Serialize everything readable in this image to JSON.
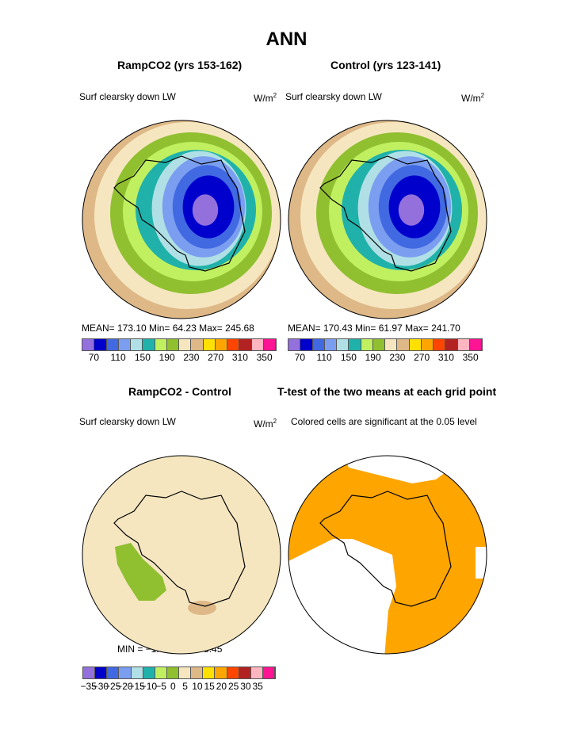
{
  "title": "ANN",
  "panels": [
    {
      "subtitle": "RampCO2 (yrs 153-162)",
      "left_label": "Surf clearsky down LW",
      "units": "W/m",
      "units_sup": "2",
      "stats": "MEAN=  173.10   Min=    64.23   Max=  245.68"
    },
    {
      "subtitle": "Control (yrs 123-141)",
      "left_label": "Surf clearsky down LW",
      "units": "W/m",
      "units_sup": "2",
      "stats": "MEAN=  170.43   Min=    61.97   Max=  241.70"
    },
    {
      "subtitle": "RampCO2 - Control",
      "left_label": "Surf clearsky down LW",
      "units": "W/m",
      "units_sup": "2",
      "stats": "MIN =   −1.61  MAX =     5.45"
    },
    {
      "subtitle": "T-test of the two means at each grid point",
      "left_label": "Colored cells are significant at the 0.05 level"
    }
  ],
  "colorbar_colors": [
    "#9370db",
    "#0000cd",
    "#4169e1",
    "#7b9ef0",
    "#b0e0e6",
    "#20b2aa",
    "#c0f060",
    "#90c030",
    "#f5e6c0",
    "#deb887",
    "#ffe000",
    "#ffa500",
    "#ff4500",
    "#b22222",
    "#ffb6c1",
    "#ff1493"
  ],
  "colorbar_labels": [
    "70",
    "110",
    "150",
    "190",
    "230",
    "270",
    "310",
    "350"
  ],
  "diff_colorbar_labels": [
    "−35",
    "−30",
    "−25",
    "−20",
    "−15",
    "−10",
    "−5",
    "0",
    "5",
    "10",
    "15",
    "20",
    "25",
    "30",
    "35"
  ],
  "ttest_color": "#ffa500"
}
